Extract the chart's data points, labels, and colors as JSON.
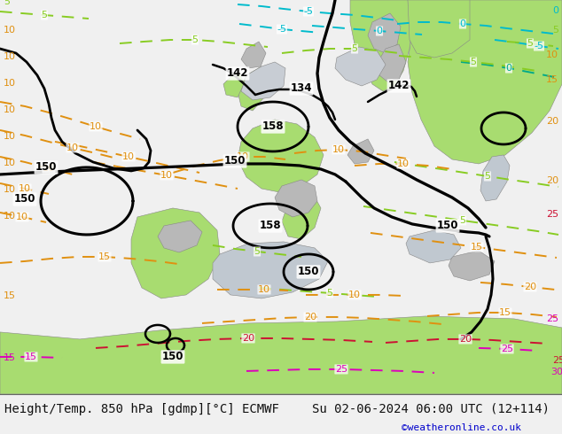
{
  "title_left": "Height/Temp. 850 hPa [gdmp][°C] ECMWF",
  "title_right": "Su 02-06-2024 06:00 UTC (12+114)",
  "credit": "©weatheronline.co.uk",
  "bg_color": "#f0f0f0",
  "map_bg_color": "#d4d4d4",
  "land_green_light": "#c8e896",
  "land_green_bright": "#a8dc70",
  "land_gray": "#b8b8b8",
  "sea_gray": "#c8c8c8",
  "text_color": "#111111",
  "credit_color": "#0000cc",
  "orange_color": "#e09010",
  "red_color": "#cc1133",
  "pink_color": "#dd00bb",
  "cyan_color": "#00bbcc",
  "teal_color": "#00aa88",
  "lime_color": "#88cc22",
  "black_lw": 2.0,
  "dash_lw": 1.4,
  "label_fs": 8,
  "title_fs": 10,
  "credit_fs": 8
}
